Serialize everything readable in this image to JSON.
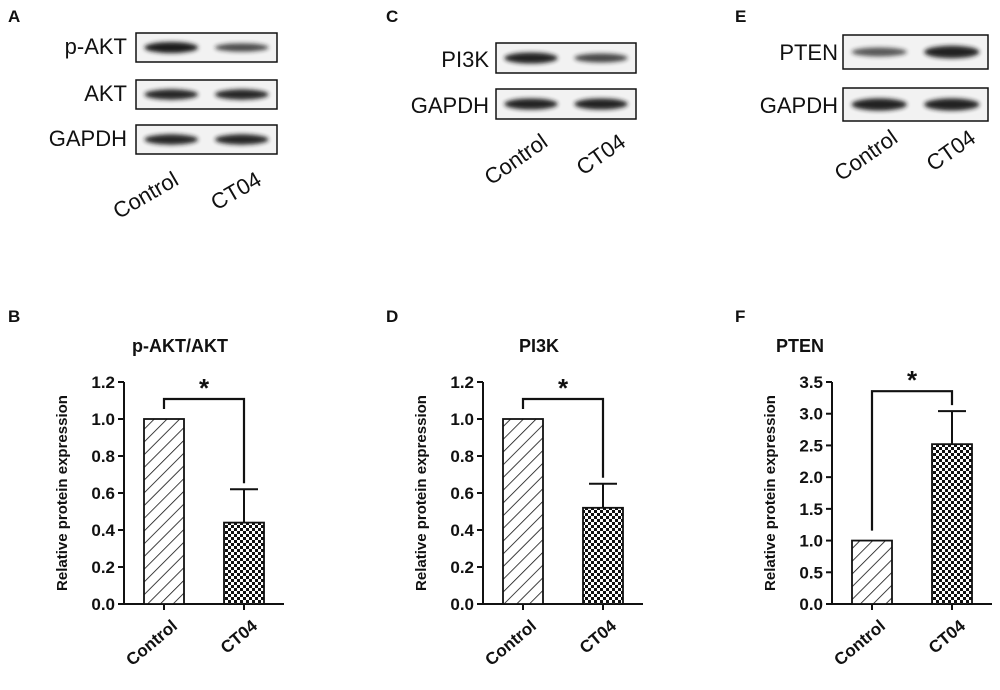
{
  "panels": [
    {
      "letter": "A",
      "kind": "blot",
      "rows": [
        {
          "label": "p-AKT",
          "bands": [
            1.0,
            0.55
          ]
        },
        {
          "label": "AKT",
          "bands": [
            0.9,
            0.9
          ]
        },
        {
          "label": "GAPDH",
          "bands": [
            0.9,
            0.9
          ]
        }
      ],
      "lanes": [
        "Control",
        "CT04"
      ]
    },
    {
      "letter": "C",
      "kind": "blot",
      "rows": [
        {
          "label": "PI3K",
          "bands": [
            0.95,
            0.6
          ]
        },
        {
          "label": "GAPDH",
          "bands": [
            0.95,
            0.95
          ]
        }
      ],
      "lanes": [
        "Control",
        "CT04"
      ]
    },
    {
      "letter": "E",
      "kind": "blot",
      "rows": [
        {
          "label": "PTEN",
          "bands": [
            0.45,
            0.95
          ]
        },
        {
          "label": "GAPDH",
          "bands": [
            0.95,
            0.95
          ]
        }
      ],
      "lanes": [
        "Control",
        "CT04"
      ]
    },
    {
      "letter": "B",
      "kind": "chart"
    },
    {
      "letter": "D",
      "kind": "chart"
    },
    {
      "letter": "F",
      "kind": "chart"
    }
  ],
  "chart_data": [
    {
      "type": "bar",
      "title": "p-AKT/AKT",
      "ylabel": "Relative protein expression",
      "categories": [
        "Control",
        "CT04"
      ],
      "values": [
        1.0,
        0.44
      ],
      "errors": [
        0,
        0.18
      ],
      "ylim": [
        0,
        1.2
      ],
      "yticks": [
        "0.0",
        "0.2",
        "0.4",
        "0.6",
        "0.8",
        "1.0",
        "1.2"
      ],
      "significance": "*",
      "patterns": [
        "diagonal-hatch",
        "checkerboard"
      ]
    },
    {
      "type": "bar",
      "title": "PI3K",
      "ylabel": "Relative protein expression",
      "categories": [
        "Control",
        "CT04"
      ],
      "values": [
        1.0,
        0.52
      ],
      "errors": [
        0,
        0.13
      ],
      "ylim": [
        0,
        1.2
      ],
      "yticks": [
        "0.0",
        "0.2",
        "0.4",
        "0.6",
        "0.8",
        "1.0",
        "1.2"
      ],
      "significance": "*",
      "patterns": [
        "diagonal-hatch",
        "checkerboard"
      ]
    },
    {
      "type": "bar",
      "title": "PTEN",
      "ylabel": "Relative protein expression",
      "categories": [
        "Control",
        "CT04"
      ],
      "values": [
        1.0,
        2.52
      ],
      "errors": [
        0,
        0.52
      ],
      "ylim": [
        0,
        3.5
      ],
      "yticks": [
        "0.0",
        "0.5",
        "1.0",
        "1.5",
        "2.0",
        "2.5",
        "3.0",
        "3.5"
      ],
      "significance": "*",
      "patterns": [
        "diagonal-hatch",
        "checkerboard"
      ]
    }
  ],
  "colors": {
    "ink": "#111111",
    "band": "#1c1c1c",
    "membrane": "#f2f2f2"
  }
}
